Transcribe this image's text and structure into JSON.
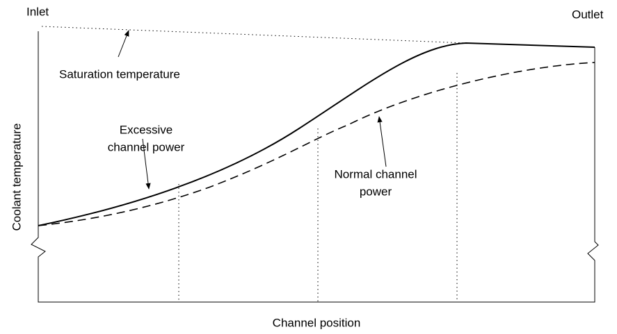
{
  "labels": {
    "inlet": "Inlet",
    "outlet": "Outlet",
    "saturation": "Saturation temperature",
    "excessive": [
      "Excessive",
      "channel power"
    ],
    "normal": [
      "Normal channel",
      "power"
    ],
    "y_axis": "Coolant temperature",
    "x_axis": "Channel position"
  }
}
